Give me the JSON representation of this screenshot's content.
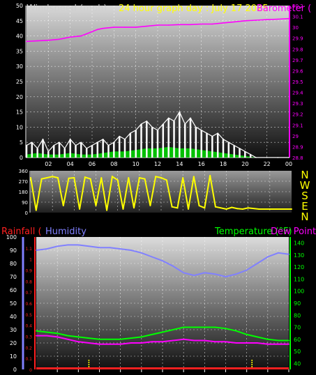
{
  "colors": {
    "background": "#000000",
    "wind_title": "#cfcfcf",
    "graph_title": "#ffff00",
    "barometer": "#ff00ff",
    "windspeed": "#ffffff",
    "windgust_fill": "#00dd00",
    "direction": "#ffff00",
    "compass": "#ffff00",
    "rainfall": "#ff2020",
    "humidity": "#8080ff",
    "temperature": "#00ff00",
    "dewpoint": "#ff00ff",
    "rain_marker": "#ffff00"
  },
  "chart_data": [
    {
      "type": "line",
      "panel": "wind-barometer",
      "title": "24 hour graph day : July 17 2025",
      "left_axis_label": "Windspeed (mph)",
      "right_axis_label": "Barometer (",
      "x_ticks": [
        "02",
        "04",
        "06",
        "08",
        "10",
        "12",
        "14",
        "16",
        "18",
        "20",
        "22",
        "00"
      ],
      "y_left_ticks": [
        "0",
        "5",
        "10",
        "15",
        "20",
        "25",
        "30",
        "35",
        "40",
        "45",
        "50"
      ],
      "ylim_left": [
        0,
        50
      ],
      "y_right_ticks": [
        "28.8",
        "28.9",
        "29",
        "29.1",
        "29.2",
        "29.3",
        "29.4",
        "29.5",
        "29.6",
        "29.7",
        "29.8",
        "29.9",
        "30",
        "30.1",
        "30.2"
      ],
      "ylim_right": [
        28.8,
        30.2
      ],
      "xlim": [
        0,
        24
      ],
      "series": [
        {
          "name": "Barometer (",
          "axis": "right",
          "x": [
            0,
            1,
            2,
            3,
            4,
            5,
            5.5,
            6,
            6.5,
            7,
            8,
            9,
            10,
            11,
            12,
            13,
            14,
            15,
            16,
            17,
            18,
            19,
            20,
            21,
            22,
            23,
            24
          ],
          "values": [
            29.87,
            29.875,
            29.88,
            29.89,
            29.91,
            29.92,
            29.94,
            29.96,
            29.98,
            29.99,
            30.0,
            30.0,
            30.0,
            30.01,
            30.02,
            30.02,
            30.025,
            30.025,
            30.03,
            30.03,
            30.04,
            30.05,
            30.06,
            30.065,
            30.07,
            30.075,
            30.08
          ]
        },
        {
          "name": "Windspeed",
          "axis": "left",
          "x": [
            0,
            0.5,
            1,
            1.5,
            2,
            2.5,
            3,
            3.5,
            4,
            4.5,
            5,
            5.5,
            6,
            6.5,
            7,
            7.5,
            8,
            8.5,
            9,
            9.5,
            10,
            10.5,
            11,
            11.5,
            12,
            12.5,
            13,
            13.5,
            14,
            14.5,
            15,
            15.5,
            16,
            16.5,
            17,
            17.5,
            18,
            18.5,
            19,
            19.5,
            20,
            20.5,
            21,
            22,
            23,
            24
          ],
          "values": [
            4,
            5,
            3,
            6,
            2,
            4,
            5,
            3,
            6,
            4,
            5,
            3,
            4,
            5,
            6,
            4,
            5,
            7,
            6,
            8,
            9,
            11,
            12,
            10,
            9,
            11,
            13,
            12,
            15,
            11,
            13,
            10,
            9,
            8,
            7,
            8,
            6,
            5,
            4,
            3,
            2,
            1,
            0,
            0,
            0,
            0
          ]
        },
        {
          "name": "Wind gust",
          "axis": "left",
          "x": [
            0,
            1,
            2,
            3,
            4,
            5,
            6,
            7,
            8,
            9,
            10,
            11,
            12,
            13,
            14,
            15,
            16,
            17,
            18,
            19,
            20,
            21,
            22,
            23,
            24
          ],
          "values": [
            1,
            1.5,
            1,
            1,
            1.5,
            1,
            1,
            1.5,
            2,
            2,
            2.5,
            3,
            3,
            3.5,
            3,
            3,
            2.5,
            2,
            1.5,
            1,
            0.5,
            0,
            0,
            0,
            0
          ]
        }
      ]
    },
    {
      "type": "line",
      "panel": "wind-direction",
      "y_ticks": [
        "0",
        "90",
        "180",
        "270",
        "360"
      ],
      "ylim": [
        0,
        360
      ],
      "compass_labels": [
        "N",
        "W",
        "S",
        "E",
        "N"
      ],
      "xlim": [
        0,
        24
      ],
      "series": [
        {
          "name": "Wind direction",
          "x": [
            0,
            0.5,
            1,
            1.5,
            2,
            2.5,
            3,
            3.5,
            4,
            4.5,
            5,
            5.5,
            6,
            6.5,
            7,
            7.5,
            8,
            8.5,
            9,
            9.5,
            10,
            10.5,
            11,
            11.5,
            12,
            12.5,
            13,
            13.5,
            14,
            14.5,
            15,
            15.5,
            16,
            16.5,
            17,
            17.5,
            18,
            18.5,
            19,
            19.5,
            20,
            21,
            22,
            23,
            24
          ],
          "values": [
            300,
            20,
            290,
            300,
            310,
            300,
            60,
            295,
            300,
            30,
            305,
            290,
            60,
            300,
            20,
            310,
            280,
            30,
            300,
            40,
            300,
            290,
            60,
            310,
            300,
            280,
            50,
            40,
            300,
            30,
            310,
            60,
            40,
            320,
            50,
            40,
            30,
            45,
            35,
            30,
            40,
            30,
            30,
            30,
            30
          ]
        }
      ]
    },
    {
      "type": "line",
      "panel": "rain-humidity-temperature",
      "labels": [
        "Rainfall (",
        "Humidity",
        "Temperature (°F)",
        "Dew Point"
      ],
      "x_ticks": [
        "02",
        "04",
        "06",
        "08",
        "10",
        "12",
        "14",
        "16",
        "18",
        "20",
        "22",
        "00"
      ],
      "y_left_ticks": [
        "0",
        "10",
        "20",
        "30",
        "40",
        "50",
        "60",
        "70",
        "80",
        "90",
        "100"
      ],
      "ylim_left": [
        0,
        100
      ],
      "y_rain_ticks": [
        "0",
        "0.1",
        "0.2",
        "0.3",
        "0.4",
        "0.5",
        "0.6",
        "0.7",
        "0.8",
        "0.9",
        "1",
        "1.1"
      ],
      "ylim_rain": [
        0,
        1.2
      ],
      "y_right_ticks": [
        "40",
        "50",
        "60",
        "70",
        "80",
        "90",
        "100",
        "110",
        "120",
        "130",
        "140"
      ],
      "ylim_right": [
        35,
        145
      ],
      "xlim": [
        0,
        24
      ],
      "series": [
        {
          "name": "Humidity",
          "axis": "left",
          "x": [
            0,
            1,
            2,
            3,
            4,
            5,
            6,
            7,
            8,
            9,
            10,
            11,
            12,
            13,
            14,
            15,
            16,
            17,
            18,
            19,
            20,
            21,
            22,
            23,
            24
          ],
          "values": [
            90,
            91,
            93,
            94,
            94,
            93,
            92,
            92,
            91,
            90,
            88,
            85,
            82,
            78,
            73,
            71,
            73,
            72,
            70,
            72,
            75,
            80,
            85,
            88,
            87
          ]
        },
        {
          "name": "Temperature (°F)",
          "axis": "right",
          "x": [
            0,
            1,
            2,
            3,
            4,
            5,
            6,
            7,
            8,
            9,
            10,
            11,
            12,
            13,
            14,
            15,
            16,
            17,
            18,
            19,
            20,
            21,
            22,
            23,
            24
          ],
          "values": [
            67,
            66,
            65,
            63,
            62,
            61,
            60,
            60,
            60,
            61,
            62,
            64,
            66,
            68,
            70,
            70,
            70,
            70,
            69,
            67,
            64,
            62,
            60,
            59,
            59
          ]
        },
        {
          "name": "Dew Point",
          "axis": "right",
          "x": [
            0,
            1,
            2,
            3,
            4,
            5,
            6,
            7,
            8,
            9,
            10,
            11,
            12,
            13,
            14,
            15,
            16,
            17,
            18,
            19,
            20,
            21,
            22,
            23,
            24
          ],
          "values": [
            63,
            63,
            62,
            60,
            58,
            57,
            56,
            56,
            56,
            57,
            57,
            58,
            58,
            59,
            60,
            59,
            59,
            58,
            58,
            57,
            57,
            57,
            56,
            56,
            56
          ]
        },
        {
          "name": "Rainfall (",
          "axis": "rain",
          "x": [
            0,
            24
          ],
          "values": [
            0,
            0
          ]
        }
      ],
      "rain_markers_x": [
        5,
        20.5
      ]
    }
  ]
}
